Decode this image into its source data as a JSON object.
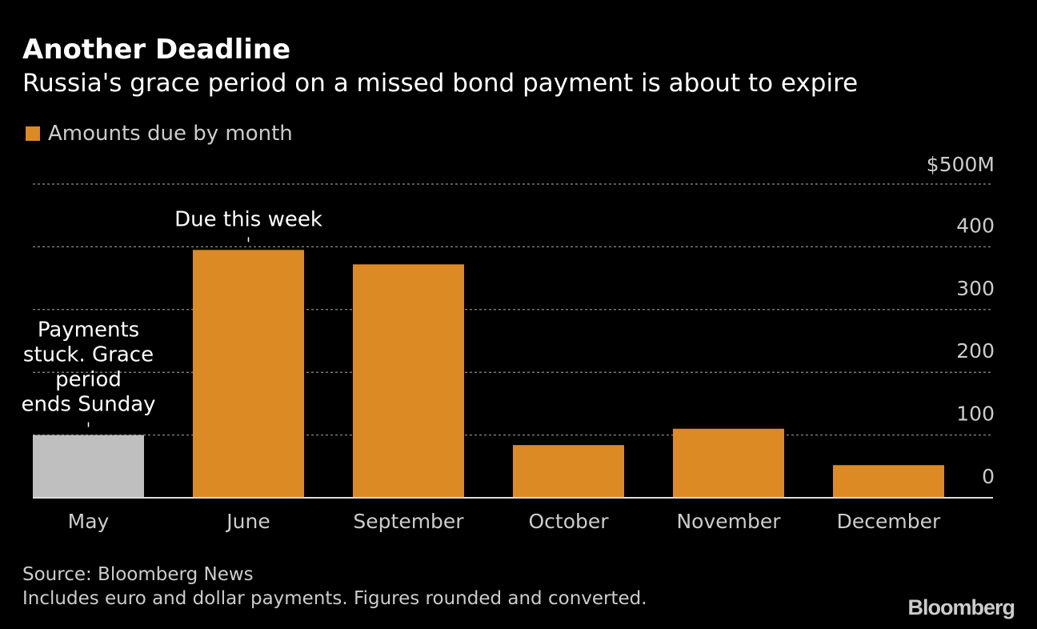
{
  "title": "Another Deadline",
  "subtitle": "Russia's grace period on a missed bond payment is about to expire",
  "legend": {
    "label": "Amounts due by month",
    "color": "#db8a24"
  },
  "source": "Source: Bloomberg News",
  "note": "Includes euro and dollar payments. Figures rounded and converted.",
  "logo": "Bloomberg",
  "chart_data": {
    "type": "bar",
    "categories": [
      "May",
      "June",
      "September",
      "October",
      "November",
      "December"
    ],
    "values": [
      100,
      395,
      372,
      84,
      110,
      52
    ],
    "colors": [
      "#bfbfbf",
      "#db8a24",
      "#db8a24",
      "#db8a24",
      "#db8a24",
      "#db8a24"
    ],
    "ylim": [
      0,
      500
    ],
    "yticks": [
      0,
      100,
      200,
      300,
      400,
      500
    ],
    "ytick_labels": [
      "0",
      "100",
      "200",
      "300",
      "400",
      "$500M"
    ],
    "grid": true,
    "annotations": [
      {
        "category": "June",
        "lines": [
          "Due this week"
        ]
      },
      {
        "category": "May",
        "lines": [
          "Payments",
          "stuck. Grace",
          "period",
          "ends Sunday"
        ]
      }
    ]
  }
}
